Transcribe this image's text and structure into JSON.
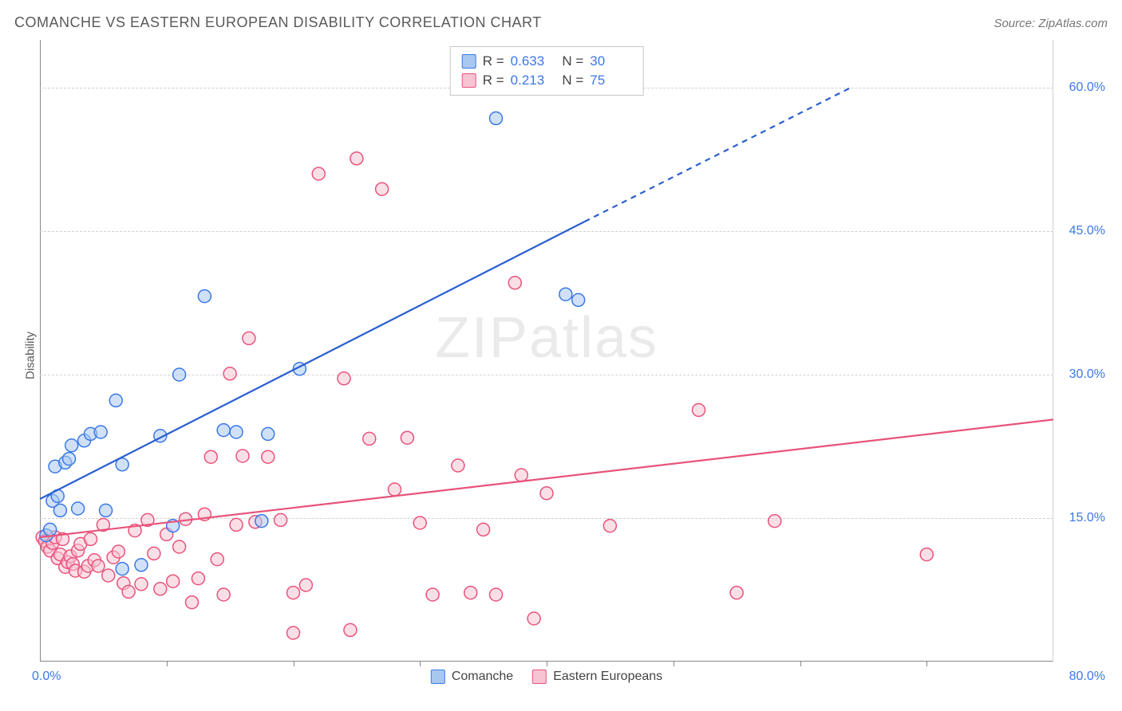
{
  "title": "COMANCHE VS EASTERN EUROPEAN DISABILITY CORRELATION CHART",
  "source_label": "Source: ZipAtlas.com",
  "ylabel": "Disability",
  "watermark": {
    "zip": "ZIP",
    "atlas": "atlas"
  },
  "chart": {
    "type": "scatter",
    "xlim": [
      0,
      80
    ],
    "ylim": [
      0,
      65
    ],
    "yticks": [
      15.0,
      30.0,
      45.0,
      60.0
    ],
    "ytick_labels": [
      "15.0%",
      "30.0%",
      "45.0%",
      "60.0%"
    ],
    "xtick_left": "0.0%",
    "xtick_right": "80.0%",
    "xtick_marks": [
      10,
      20,
      30,
      40,
      50,
      60,
      70
    ],
    "background_color": "#ffffff",
    "grid_color": "#d0d0d0",
    "axis_color": "#888888",
    "tick_label_color": "#3b78e7",
    "marker_radius": 8,
    "marker_stroke_width": 1.5,
    "line_width": 2.2,
    "series": [
      {
        "name": "Comanche",
        "R": "0.633",
        "N": "30",
        "fill": "#a9c8f0",
        "stroke": "#3b78e7",
        "line_color": "#2a5fd0",
        "trend": {
          "x1": 0,
          "y1": 17,
          "x2_solid": 43,
          "y2_solid": 46,
          "x2": 64,
          "y2": 60
        },
        "points": [
          [
            0.5,
            13.2
          ],
          [
            0.8,
            13.8
          ],
          [
            1.0,
            16.8
          ],
          [
            1.4,
            17.3
          ],
          [
            1.6,
            15.8
          ],
          [
            1.2,
            20.4
          ],
          [
            2.0,
            20.8
          ],
          [
            2.3,
            21.2
          ],
          [
            2.5,
            22.6
          ],
          [
            3.5,
            23.1
          ],
          [
            4.0,
            23.8
          ],
          [
            3.0,
            16.0
          ],
          [
            4.8,
            24.0
          ],
          [
            6.0,
            27.3
          ],
          [
            5.2,
            15.8
          ],
          [
            6.5,
            9.7
          ],
          [
            8.0,
            10.1
          ],
          [
            9.5,
            23.6
          ],
          [
            10.5,
            14.2
          ],
          [
            11.0,
            30.0
          ],
          [
            13.0,
            38.2
          ],
          [
            14.5,
            24.2
          ],
          [
            15.5,
            24.0
          ],
          [
            17.5,
            14.7
          ],
          [
            18.0,
            23.8
          ],
          [
            20.5,
            30.6
          ],
          [
            36.0,
            56.8
          ],
          [
            41.5,
            38.4
          ],
          [
            42.5,
            37.8
          ],
          [
            6.5,
            20.6
          ]
        ]
      },
      {
        "name": "Eastern Europeans",
        "R": "0.213",
        "N": "75",
        "fill": "#f7c4d4",
        "stroke": "#e8537a",
        "line_color": "#e8537a",
        "trend": {
          "x1": 0,
          "y1": 13,
          "x2_solid": 80,
          "y2_solid": 25.3,
          "x2": 80,
          "y2": 25.3
        },
        "points": [
          [
            0.2,
            13.0
          ],
          [
            0.4,
            12.6
          ],
          [
            0.6,
            12.0
          ],
          [
            0.8,
            11.6
          ],
          [
            1.0,
            12.4
          ],
          [
            1.2,
            13.0
          ],
          [
            1.4,
            10.8
          ],
          [
            1.6,
            11.2
          ],
          [
            1.8,
            12.8
          ],
          [
            2.0,
            9.9
          ],
          [
            2.2,
            10.4
          ],
          [
            2.4,
            11.0
          ],
          [
            2.6,
            10.2
          ],
          [
            2.8,
            9.5
          ],
          [
            3.0,
            11.6
          ],
          [
            3.2,
            12.3
          ],
          [
            3.5,
            9.4
          ],
          [
            3.8,
            10.0
          ],
          [
            4.0,
            12.8
          ],
          [
            4.3,
            10.6
          ],
          [
            4.6,
            10.0
          ],
          [
            5.0,
            14.3
          ],
          [
            5.4,
            9.0
          ],
          [
            5.8,
            10.9
          ],
          [
            6.2,
            11.5
          ],
          [
            6.6,
            8.2
          ],
          [
            7.0,
            7.3
          ],
          [
            7.5,
            13.7
          ],
          [
            8.0,
            8.1
          ],
          [
            8.5,
            14.8
          ],
          [
            9.0,
            11.3
          ],
          [
            9.5,
            7.6
          ],
          [
            10.0,
            13.3
          ],
          [
            10.5,
            8.4
          ],
          [
            11.0,
            12.0
          ],
          [
            11.5,
            14.9
          ],
          [
            12.0,
            6.2
          ],
          [
            12.5,
            8.7
          ],
          [
            13.0,
            15.4
          ],
          [
            13.5,
            21.4
          ],
          [
            14.0,
            10.7
          ],
          [
            14.5,
            7.0
          ],
          [
            15.0,
            30.1
          ],
          [
            15.5,
            14.3
          ],
          [
            16.0,
            21.5
          ],
          [
            16.5,
            33.8
          ],
          [
            17.0,
            14.6
          ],
          [
            18.0,
            21.4
          ],
          [
            19.0,
            14.8
          ],
          [
            20.0,
            3.0
          ],
          [
            21.0,
            8.0
          ],
          [
            22.0,
            51.0
          ],
          [
            24.0,
            29.6
          ],
          [
            24.5,
            3.3
          ],
          [
            25.0,
            52.6
          ],
          [
            26.0,
            23.3
          ],
          [
            27.0,
            49.4
          ],
          [
            28.0,
            18.0
          ],
          [
            29.0,
            23.4
          ],
          [
            31.0,
            7.0
          ],
          [
            33.0,
            20.5
          ],
          [
            34.0,
            7.2
          ],
          [
            35.0,
            13.8
          ],
          [
            36.0,
            7.0
          ],
          [
            37.5,
            39.6
          ],
          [
            38.0,
            19.5
          ],
          [
            39.0,
            4.5
          ],
          [
            40.0,
            17.6
          ],
          [
            45.0,
            14.2
          ],
          [
            52.0,
            26.3
          ],
          [
            55.0,
            7.2
          ],
          [
            58.0,
            14.7
          ],
          [
            70.0,
            11.2
          ],
          [
            20.0,
            7.2
          ],
          [
            30.0,
            14.5
          ]
        ]
      }
    ]
  },
  "bottom_legend": [
    "Comanche",
    "Eastern Europeans"
  ]
}
